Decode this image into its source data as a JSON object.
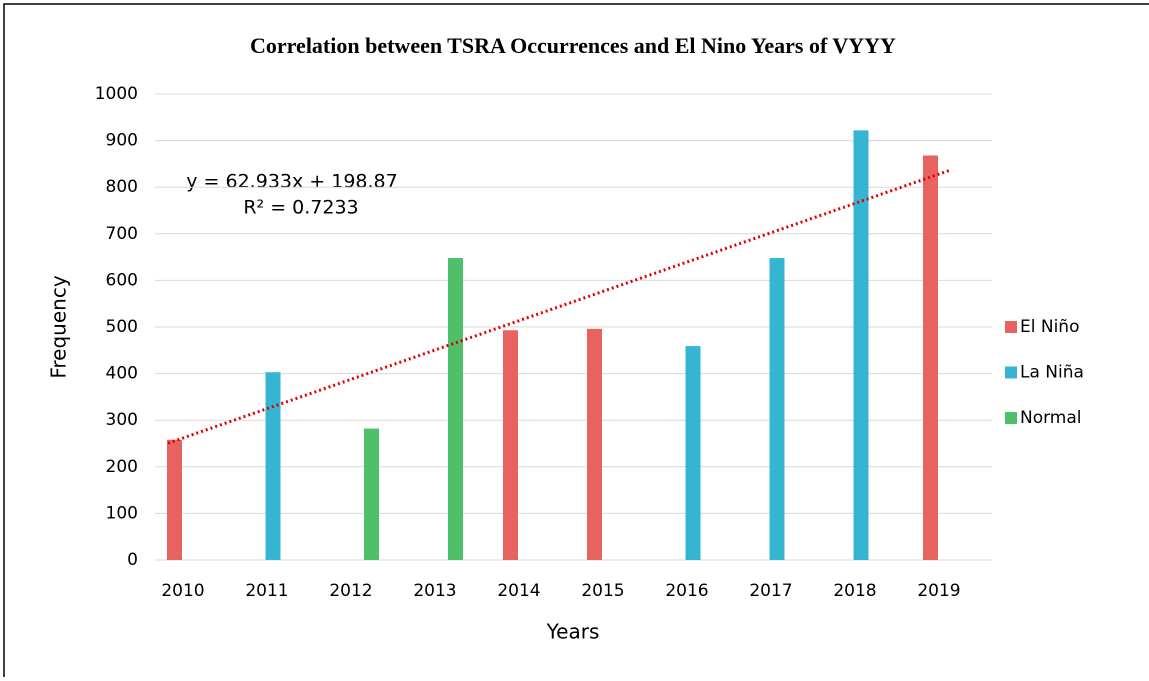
{
  "chart_data": {
    "type": "bar",
    "title": "Correlation between TSRA Occurrences and El Nino Years of VYYY",
    "x_label": "Years",
    "y_label": "Frequency",
    "categories": [
      "2010",
      "2011",
      "2012",
      "2013",
      "2014",
      "2015",
      "2016",
      "2017",
      "2018",
      "2019"
    ],
    "series": [
      {
        "name": "El Niño",
        "color": "#e8635f",
        "values": [
          258,
          null,
          null,
          null,
          493,
          496,
          null,
          null,
          null,
          868
        ]
      },
      {
        "name": "La Niña",
        "color": "#36b5d3",
        "values": [
          null,
          403,
          null,
          null,
          null,
          null,
          459,
          648,
          922,
          null
        ]
      },
      {
        "name": "Normal",
        "color": "#4fc06a",
        "values": [
          null,
          null,
          282,
          648,
          null,
          null,
          null,
          null,
          null,
          null
        ]
      }
    ],
    "trendline": {
      "slope": 62.933,
      "intercept": 198.87,
      "color": "#e00000",
      "label": "y = 62.933x + 198.87",
      "r2_label": "R² = 0.7233"
    },
    "ylim": [
      0,
      1000
    ],
    "yticks": [
      0,
      100,
      200,
      300,
      400,
      500,
      600,
      700,
      800,
      900,
      1000
    ],
    "grid": true,
    "legend": "right"
  }
}
